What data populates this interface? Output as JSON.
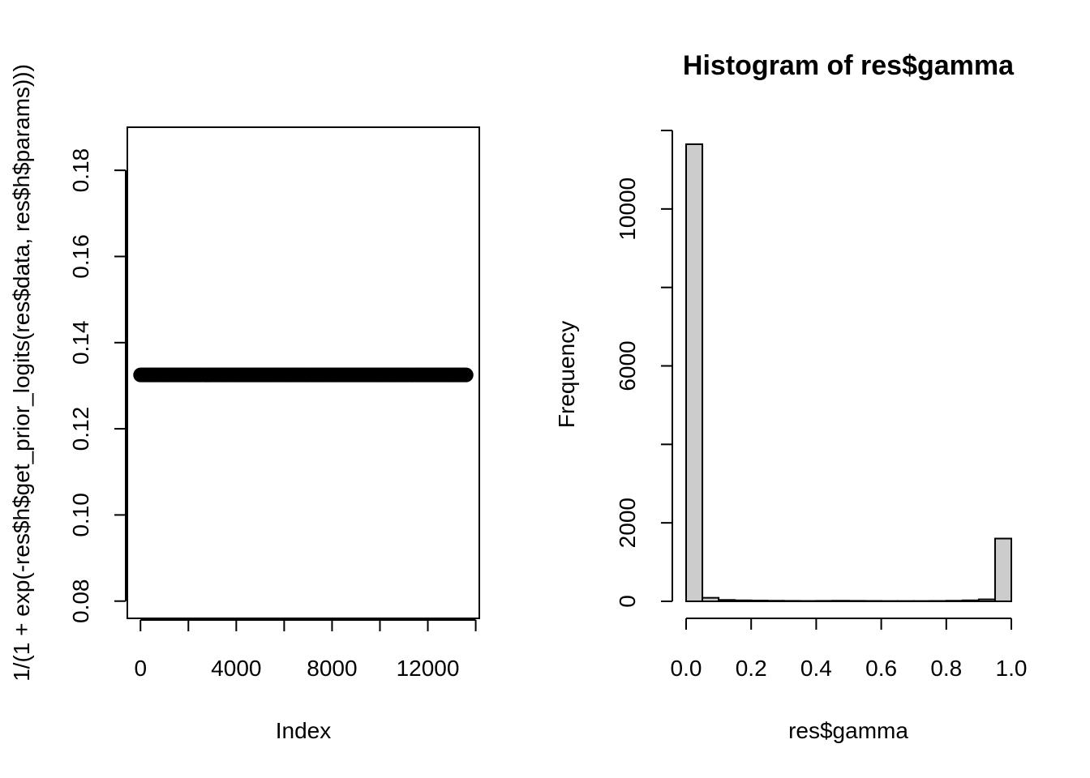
{
  "chart_data": [
    {
      "type": "scatter",
      "title": "",
      "xlabel": "Index",
      "ylabel": "1/(1 + exp(-res$h$get_prior_logits(res$data, res$h$params)))",
      "xlim": [
        -550,
        14150
      ],
      "ylim": [
        0.076,
        0.19
      ],
      "xticks": [
        0,
        2000,
        4000,
        6000,
        8000,
        10000,
        12000,
        14000
      ],
      "xtick_labels": [
        "0",
        "",
        "4000",
        "",
        "8000",
        "",
        "12000",
        ""
      ],
      "yticks": [
        0.08,
        0.1,
        0.12,
        0.14,
        0.16,
        0.18
      ],
      "ytick_labels": [
        "0.08",
        "0.10",
        "0.12",
        "0.14",
        "0.16",
        "0.18"
      ],
      "n_points": 13600,
      "x": [
        1,
        13600
      ],
      "y": [
        0.1325,
        0.1325
      ],
      "point_style": "open-circle",
      "color": "#000000",
      "grid": false,
      "legend": "none"
    },
    {
      "type": "bar",
      "title": "Histogram of res$gamma",
      "xlabel": "res$gamma",
      "ylabel": "Frequency",
      "xlim": [
        -0.04,
        1.04
      ],
      "ylim": [
        0,
        12000
      ],
      "xticks": [
        0.0,
        0.2,
        0.4,
        0.6,
        0.8,
        1.0
      ],
      "xtick_labels": [
        "0.0",
        "0.2",
        "0.4",
        "0.6",
        "0.8",
        "1.0"
      ],
      "yticks": [
        0,
        2000,
        4000,
        6000,
        8000,
        10000,
        12000
      ],
      "ytick_labels": [
        "0",
        "2000",
        "",
        "6000",
        "",
        "10000",
        ""
      ],
      "bin_width": 0.05,
      "bin_starts": [
        0.0,
        0.05,
        0.1,
        0.15,
        0.2,
        0.25,
        0.3,
        0.35,
        0.4,
        0.45,
        0.5,
        0.55,
        0.6,
        0.65,
        0.7,
        0.75,
        0.8,
        0.85,
        0.9,
        0.95
      ],
      "values": [
        11650,
        90,
        35,
        25,
        20,
        15,
        12,
        10,
        12,
        15,
        12,
        10,
        8,
        8,
        8,
        10,
        15,
        25,
        50,
        1600
      ],
      "bar_fill": "#cccccc",
      "bar_stroke": "#000000",
      "grid": false,
      "legend": "none"
    }
  ]
}
